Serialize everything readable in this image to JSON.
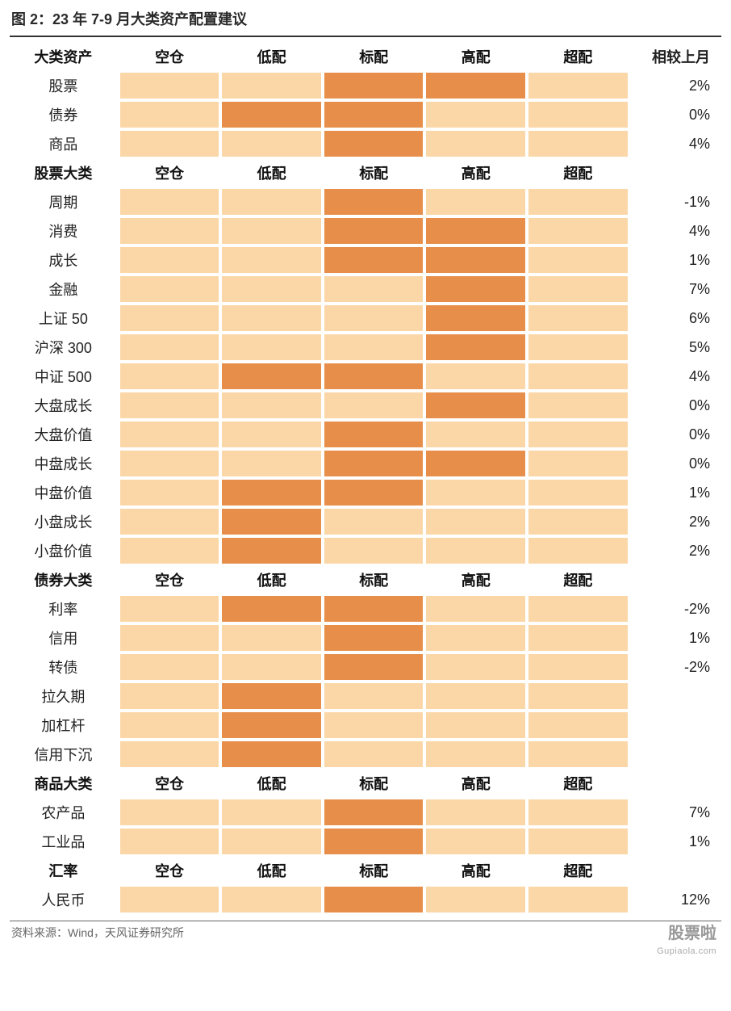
{
  "title": "图 2：23 年 7-9 月大类资产配置建议",
  "source": "资料来源：Wind，天风证券研究所",
  "watermark_top": "股票啦",
  "watermark_sub": "Gupiaola.com",
  "colors": {
    "light": "#fbd7a7",
    "dark": "#e78f4a",
    "background": "#ffffff",
    "text": "#222222",
    "header_text": "#111111"
  },
  "alloc_levels": [
    "空仓",
    "低配",
    "标配",
    "高配",
    "超配"
  ],
  "change_header": "相较上月",
  "sections": [
    {
      "header": "大类资产",
      "show_change_header": true,
      "rows": [
        {
          "label": "股票",
          "cells": [
            0,
            0,
            1,
            1,
            0
          ],
          "change": "2%"
        },
        {
          "label": "债券",
          "cells": [
            0,
            1,
            1,
            0,
            0
          ],
          "change": "0%"
        },
        {
          "label": "商品",
          "cells": [
            0,
            0,
            1,
            0,
            0
          ],
          "change": "4%"
        }
      ]
    },
    {
      "header": "股票大类",
      "show_change_header": false,
      "rows": [
        {
          "label": "周期",
          "cells": [
            0,
            0,
            1,
            0,
            0
          ],
          "change": "-1%"
        },
        {
          "label": "消费",
          "cells": [
            0,
            0,
            1,
            1,
            0
          ],
          "change": "4%"
        },
        {
          "label": "成长",
          "cells": [
            0,
            0,
            1,
            1,
            0
          ],
          "change": "1%"
        },
        {
          "label": "金融",
          "cells": [
            0,
            0,
            0,
            1,
            0
          ],
          "change": "7%"
        },
        {
          "label": "上证 50",
          "cells": [
            0,
            0,
            0,
            1,
            0
          ],
          "change": "6%"
        },
        {
          "label": "沪深 300",
          "cells": [
            0,
            0,
            0,
            1,
            0
          ],
          "change": "5%"
        },
        {
          "label": "中证 500",
          "cells": [
            0,
            1,
            1,
            0,
            0
          ],
          "change": "4%"
        },
        {
          "label": "大盘成长",
          "cells": [
            0,
            0,
            0,
            1,
            0
          ],
          "change": "0%"
        },
        {
          "label": "大盘价值",
          "cells": [
            0,
            0,
            1,
            0,
            0
          ],
          "change": "0%"
        },
        {
          "label": "中盘成长",
          "cells": [
            0,
            0,
            1,
            1,
            0
          ],
          "change": "0%"
        },
        {
          "label": "中盘价值",
          "cells": [
            0,
            1,
            1,
            0,
            0
          ],
          "change": "1%"
        },
        {
          "label": "小盘成长",
          "cells": [
            0,
            1,
            0,
            0,
            0
          ],
          "change": "2%"
        },
        {
          "label": "小盘价值",
          "cells": [
            0,
            1,
            0,
            0,
            0
          ],
          "change": "2%"
        }
      ]
    },
    {
      "header": "债券大类",
      "show_change_header": false,
      "rows": [
        {
          "label": "利率",
          "cells": [
            0,
            1,
            1,
            0,
            0
          ],
          "change": "-2%"
        },
        {
          "label": "信用",
          "cells": [
            0,
            0,
            1,
            0,
            0
          ],
          "change": "1%"
        },
        {
          "label": "转债",
          "cells": [
            0,
            0,
            1,
            0,
            0
          ],
          "change": "-2%"
        },
        {
          "label": "拉久期",
          "cells": [
            0,
            1,
            0,
            0,
            0
          ],
          "change": ""
        },
        {
          "label": "加杠杆",
          "cells": [
            0,
            1,
            0,
            0,
            0
          ],
          "change": ""
        },
        {
          "label": "信用下沉",
          "cells": [
            0,
            1,
            0,
            0,
            0
          ],
          "change": ""
        }
      ]
    },
    {
      "header": "商品大类",
      "show_change_header": false,
      "rows": [
        {
          "label": "农产品",
          "cells": [
            0,
            0,
            1,
            0,
            0
          ],
          "change": "7%"
        },
        {
          "label": "工业品",
          "cells": [
            0,
            0,
            1,
            0,
            0
          ],
          "change": "1%"
        }
      ]
    },
    {
      "header": "汇率",
      "show_change_header": false,
      "rows": [
        {
          "label": "人民币",
          "cells": [
            0,
            0,
            1,
            0,
            0
          ],
          "change": "12%"
        }
      ]
    }
  ]
}
